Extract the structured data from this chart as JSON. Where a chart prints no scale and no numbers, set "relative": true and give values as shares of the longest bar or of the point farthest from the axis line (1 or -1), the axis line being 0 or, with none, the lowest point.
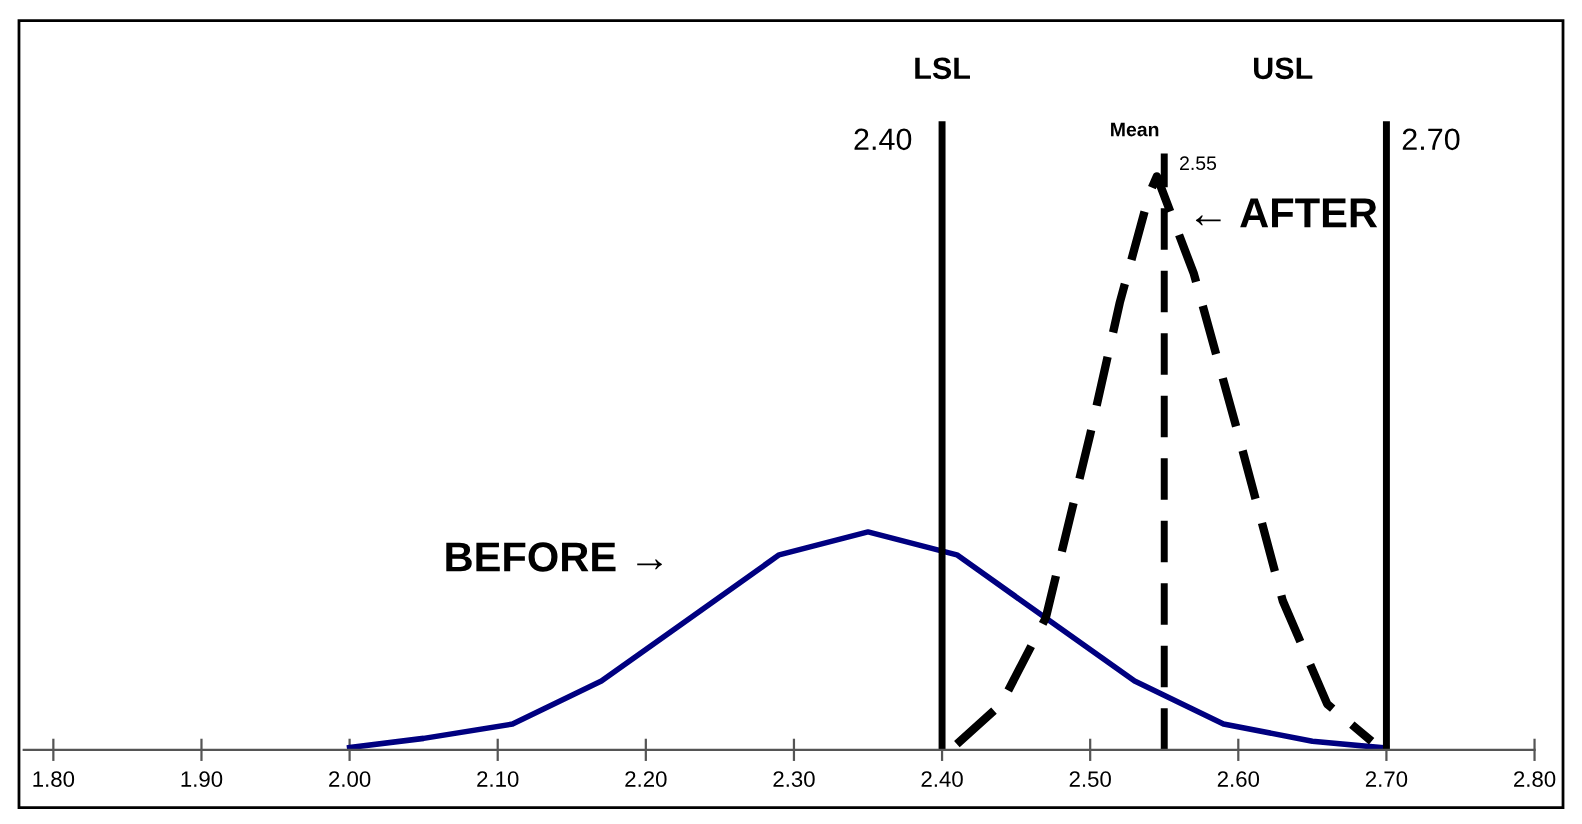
{
  "chart_data": {
    "type": "line",
    "relative": true,
    "xlim": [
      1.78,
      2.8
    ],
    "xticks": [
      {
        "value": 1.8,
        "label": "1.80"
      },
      {
        "value": 1.9,
        "label": "1.90"
      },
      {
        "value": 2.0,
        "label": "2.00"
      },
      {
        "value": 2.1,
        "label": "2.10"
      },
      {
        "value": 2.2,
        "label": "2.20"
      },
      {
        "value": 2.3,
        "label": "2.30"
      },
      {
        "value": 2.4,
        "label": "2.40"
      },
      {
        "value": 2.5,
        "label": "2.50"
      },
      {
        "value": 2.6,
        "label": "2.60"
      },
      {
        "value": 2.7,
        "label": "2.70"
      },
      {
        "value": 2.8,
        "label": "2.80"
      }
    ],
    "series": [
      {
        "color": "#000080",
        "line_style": "solid",
        "x": [
          2.0,
          2.05,
          2.11,
          2.17,
          2.23,
          2.29,
          2.35,
          2.41,
          2.47,
          2.53,
          2.59,
          2.65,
          2.7
        ],
        "values": [
          0.004,
          0.02,
          0.045,
          0.12,
          0.23,
          0.34,
          0.38,
          0.34,
          0.23,
          0.12,
          0.045,
          0.015,
          0.003
        ]
      },
      {
        "color": "#000000",
        "line_style": "dashed",
        "x": [
          2.41,
          2.44,
          2.47,
          2.5,
          2.52,
          2.54,
          2.545,
          2.57,
          2.6,
          2.63,
          2.66,
          2.69
        ],
        "values": [
          0.01,
          0.08,
          0.23,
          0.55,
          0.78,
          0.97,
          1.0,
          0.83,
          0.55,
          0.26,
          0.08,
          0.015
        ]
      }
    ],
    "ref_lines": [
      {
        "axis": "x",
        "value": 2.4,
        "label": "LSL",
        "color": "#000000",
        "line_style": "solid"
      },
      {
        "axis": "x",
        "value": 2.55,
        "label": "Mean",
        "color": "#000000",
        "line_style": "dashed"
      },
      {
        "axis": "x",
        "value": 2.7,
        "label": "USL",
        "color": "#000000",
        "line_style": "solid"
      }
    ],
    "annotations": [
      {
        "text": "2.40",
        "x": 2.4,
        "y": 1.06
      },
      {
        "text": "2.55",
        "x": 2.55,
        "y": 1.02
      },
      {
        "text": "2.70",
        "x": 2.7,
        "y": 1.06
      },
      "BEFORE →",
      "← AFTER"
    ],
    "grid": false
  }
}
